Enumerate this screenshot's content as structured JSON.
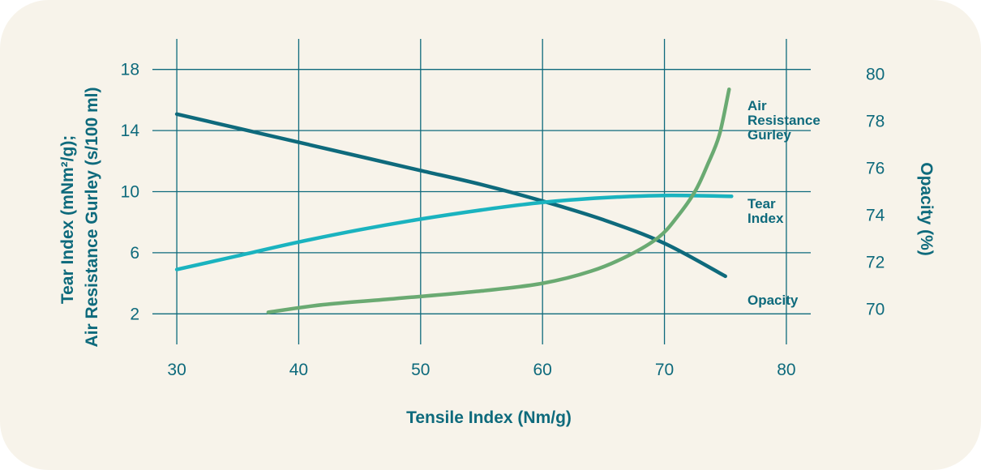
{
  "colors": {
    "background": "#f7f3ea",
    "grid": "#0e6a7c",
    "text": "#0e6a7c",
    "opacity_line": "#0e6a7c",
    "tear_line": "#1ab3bf",
    "air_line": "#6aaa72"
  },
  "chart_data": {
    "type": "line",
    "xlabel": "Tensile Index (Nm/g)",
    "ylabel_left": [
      "Tear Index (mNm²/g);",
      "Air Resistance Gurley (s/100 ml)"
    ],
    "ylabel_right": "Opacity (%)",
    "xlim": [
      28,
      82
    ],
    "ylim_left": [
      0,
      20
    ],
    "ylim_right": [
      68.5,
      81.5
    ],
    "x_ticks": [
      "30",
      "40",
      "50",
      "60",
      "70",
      "80"
    ],
    "y_left_ticks": [
      "2",
      "6",
      "10",
      "14",
      "18"
    ],
    "y_right_ticks": [
      "70",
      "72",
      "74",
      "76",
      "78",
      "80"
    ],
    "grid": true,
    "series": [
      {
        "name": "Opacity",
        "axis": "right",
        "color_key": "opacity_line",
        "label": [
          "Opacity"
        ],
        "points": [
          [
            30,
            78.3
          ],
          [
            35,
            77.7
          ],
          [
            40,
            77.1
          ],
          [
            45,
            76.5
          ],
          [
            50,
            75.9
          ],
          [
            55,
            75.3
          ],
          [
            60,
            74.6
          ],
          [
            65,
            73.8
          ],
          [
            70,
            72.8
          ],
          [
            75,
            71.4
          ]
        ]
      },
      {
        "name": "Tear Index",
        "axis": "left",
        "color_key": "tear_line",
        "label": [
          "Tear",
          "Index"
        ],
        "points": [
          [
            30,
            4.9
          ],
          [
            35,
            5.8
          ],
          [
            40,
            6.7
          ],
          [
            45,
            7.5
          ],
          [
            50,
            8.2
          ],
          [
            55,
            8.8
          ],
          [
            60,
            9.3
          ],
          [
            65,
            9.6
          ],
          [
            70,
            9.75
          ],
          [
            75.5,
            9.7
          ]
        ]
      },
      {
        "name": "Air Resistance Gurley",
        "axis": "left",
        "color_key": "air_line",
        "label": [
          "Air",
          "Resistance",
          "Gurley"
        ],
        "points": [
          [
            37.5,
            2.1
          ],
          [
            42,
            2.6
          ],
          [
            48,
            3.0
          ],
          [
            55,
            3.5
          ],
          [
            60,
            4.0
          ],
          [
            64,
            4.8
          ],
          [
            67,
            5.8
          ],
          [
            69.5,
            7.0
          ],
          [
            71,
            8.3
          ],
          [
            72.5,
            10.0
          ],
          [
            73.5,
            11.7
          ],
          [
            74.5,
            13.7
          ],
          [
            75.3,
            16.7
          ]
        ]
      }
    ]
  }
}
